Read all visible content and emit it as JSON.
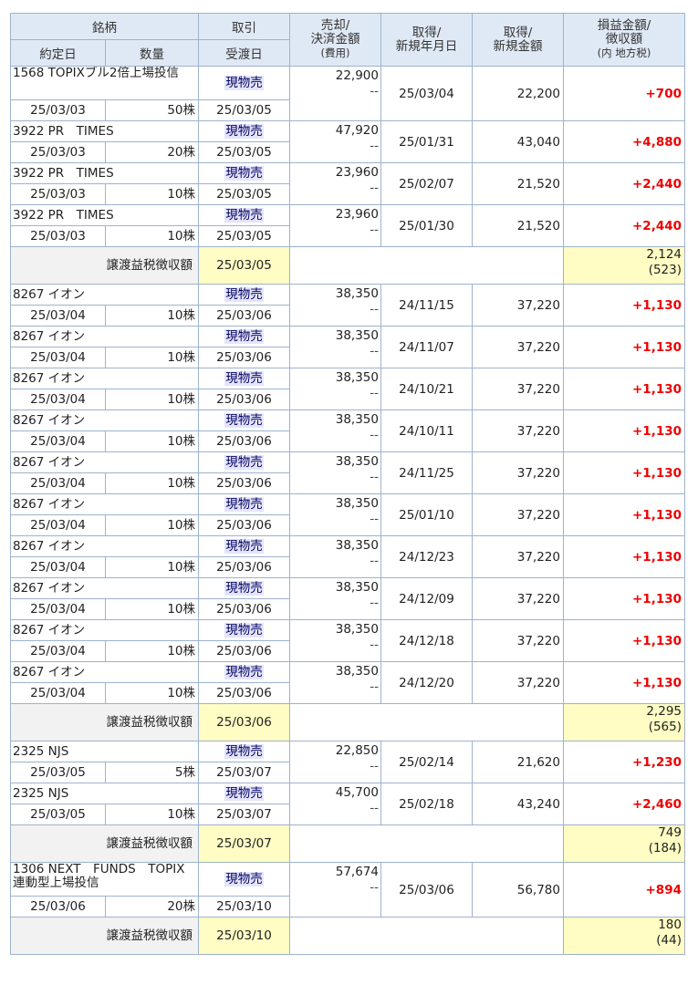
{
  "headers": {
    "brand": "銘柄",
    "trade": "取引",
    "sale_amount_l1": "売却/",
    "sale_amount_l2": "決済金額",
    "sale_amount_l3": "(費用)",
    "acq_date_l1": "取得/",
    "acq_date_l2": "新規年月日",
    "acq_amount_l1": "取得/",
    "acq_amount_l2": "新規金額",
    "pl_l1": "損益金額/",
    "pl_l2": "徴収額",
    "pl_l3": "(内 地方税)",
    "contract_date": "約定日",
    "quantity": "数量",
    "settlement_date": "受渡日"
  },
  "groups": [
    {
      "trades": [
        {
          "name": "1568 TOPIXブル2倍上場投信",
          "wrap": true,
          "type": "現物売",
          "sale": "22,900",
          "fee": "--",
          "acq_date": "25/03/04",
          "acq_amount": "22,200",
          "pl": "+700",
          "contract": "25/03/03",
          "qty": "50株",
          "settle": "25/03/05"
        },
        {
          "name": "3922 PR　TIMES",
          "type": "現物売",
          "sale": "47,920",
          "fee": "--",
          "acq_date": "25/01/31",
          "acq_amount": "43,040",
          "pl": "+4,880",
          "contract": "25/03/03",
          "qty": "20株",
          "settle": "25/03/05"
        },
        {
          "name": "3922 PR　TIMES",
          "type": "現物売",
          "sale": "23,960",
          "fee": "--",
          "acq_date": "25/02/07",
          "acq_amount": "21,520",
          "pl": "+2,440",
          "contract": "25/03/03",
          "qty": "10株",
          "settle": "25/03/05"
        },
        {
          "name": "3922 PR　TIMES",
          "type": "現物売",
          "sale": "23,960",
          "fee": "--",
          "acq_date": "25/01/30",
          "acq_amount": "21,520",
          "pl": "+2,440",
          "contract": "25/03/03",
          "qty": "10株",
          "settle": "25/03/05"
        }
      ],
      "tax": {
        "label": "譲渡益税徴収額",
        "date": "25/03/05",
        "amount": "2,124",
        "local": "(523)"
      }
    },
    {
      "trades": [
        {
          "name": "8267 イオン",
          "type": "現物売",
          "sale": "38,350",
          "fee": "--",
          "acq_date": "24/11/15",
          "acq_amount": "37,220",
          "pl": "+1,130",
          "contract": "25/03/04",
          "qty": "10株",
          "settle": "25/03/06"
        },
        {
          "name": "8267 イオン",
          "type": "現物売",
          "sale": "38,350",
          "fee": "--",
          "acq_date": "24/11/07",
          "acq_amount": "37,220",
          "pl": "+1,130",
          "contract": "25/03/04",
          "qty": "10株",
          "settle": "25/03/06"
        },
        {
          "name": "8267 イオン",
          "type": "現物売",
          "sale": "38,350",
          "fee": "--",
          "acq_date": "24/10/21",
          "acq_amount": "37,220",
          "pl": "+1,130",
          "contract": "25/03/04",
          "qty": "10株",
          "settle": "25/03/06"
        },
        {
          "name": "8267 イオン",
          "type": "現物売",
          "sale": "38,350",
          "fee": "--",
          "acq_date": "24/10/11",
          "acq_amount": "37,220",
          "pl": "+1,130",
          "contract": "25/03/04",
          "qty": "10株",
          "settle": "25/03/06"
        },
        {
          "name": "8267 イオン",
          "type": "現物売",
          "sale": "38,350",
          "fee": "--",
          "acq_date": "24/11/25",
          "acq_amount": "37,220",
          "pl": "+1,130",
          "contract": "25/03/04",
          "qty": "10株",
          "settle": "25/03/06"
        },
        {
          "name": "8267 イオン",
          "type": "現物売",
          "sale": "38,350",
          "fee": "--",
          "acq_date": "25/01/10",
          "acq_amount": "37,220",
          "pl": "+1,130",
          "contract": "25/03/04",
          "qty": "10株",
          "settle": "25/03/06"
        },
        {
          "name": "8267 イオン",
          "type": "現物売",
          "sale": "38,350",
          "fee": "--",
          "acq_date": "24/12/23",
          "acq_amount": "37,220",
          "pl": "+1,130",
          "contract": "25/03/04",
          "qty": "10株",
          "settle": "25/03/06"
        },
        {
          "name": "8267 イオン",
          "type": "現物売",
          "sale": "38,350",
          "fee": "--",
          "acq_date": "24/12/09",
          "acq_amount": "37,220",
          "pl": "+1,130",
          "contract": "25/03/04",
          "qty": "10株",
          "settle": "25/03/06"
        },
        {
          "name": "8267 イオン",
          "type": "現物売",
          "sale": "38,350",
          "fee": "--",
          "acq_date": "24/12/18",
          "acq_amount": "37,220",
          "pl": "+1,130",
          "contract": "25/03/04",
          "qty": "10株",
          "settle": "25/03/06"
        },
        {
          "name": "8267 イオン",
          "type": "現物売",
          "sale": "38,350",
          "fee": "--",
          "acq_date": "24/12/20",
          "acq_amount": "37,220",
          "pl": "+1,130",
          "contract": "25/03/04",
          "qty": "10株",
          "settle": "25/03/06"
        }
      ],
      "tax": {
        "label": "譲渡益税徴収額",
        "date": "25/03/06",
        "amount": "2,295",
        "local": "(565)"
      }
    },
    {
      "trades": [
        {
          "name": "2325 NJS",
          "type": "現物売",
          "sale": "22,850",
          "fee": "--",
          "acq_date": "25/02/14",
          "acq_amount": "21,620",
          "pl": "+1,230",
          "contract": "25/03/05",
          "qty": "5株",
          "settle": "25/03/07"
        },
        {
          "name": "2325 NJS",
          "type": "現物売",
          "sale": "45,700",
          "fee": "--",
          "acq_date": "25/02/18",
          "acq_amount": "43,240",
          "pl": "+2,460",
          "contract": "25/03/05",
          "qty": "10株",
          "settle": "25/03/07"
        }
      ],
      "tax": {
        "label": "譲渡益税徴収額",
        "date": "25/03/07",
        "amount": "749",
        "local": "(184)"
      }
    },
    {
      "trades": [
        {
          "name": "1306 NEXT　FUNDS　TOPIX連動型上場投信",
          "wrap": true,
          "type": "現物売",
          "sale": "57,674",
          "fee": "--",
          "acq_date": "25/03/06",
          "acq_amount": "56,780",
          "pl": "+894",
          "contract": "25/03/06",
          "qty": "20株",
          "settle": "25/03/10"
        }
      ],
      "tax": {
        "label": "譲渡益税徴収額",
        "date": "25/03/10",
        "amount": "180",
        "local": "(44)"
      }
    }
  ]
}
